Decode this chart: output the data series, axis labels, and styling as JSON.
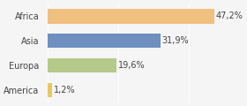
{
  "categories": [
    "Africa",
    "Asia",
    "Europa",
    "America"
  ],
  "values": [
    47.2,
    31.9,
    19.6,
    1.2
  ],
  "labels": [
    "47,2%",
    "31,9%",
    "19,6%",
    "1,2%"
  ],
  "bar_colors": [
    "#f0c080",
    "#6e8fc0",
    "#b5c98a",
    "#e8c860"
  ],
  "background_color": "#f5f5f5",
  "xlim": [
    0,
    55
  ],
  "label_fontsize": 7,
  "category_fontsize": 7
}
